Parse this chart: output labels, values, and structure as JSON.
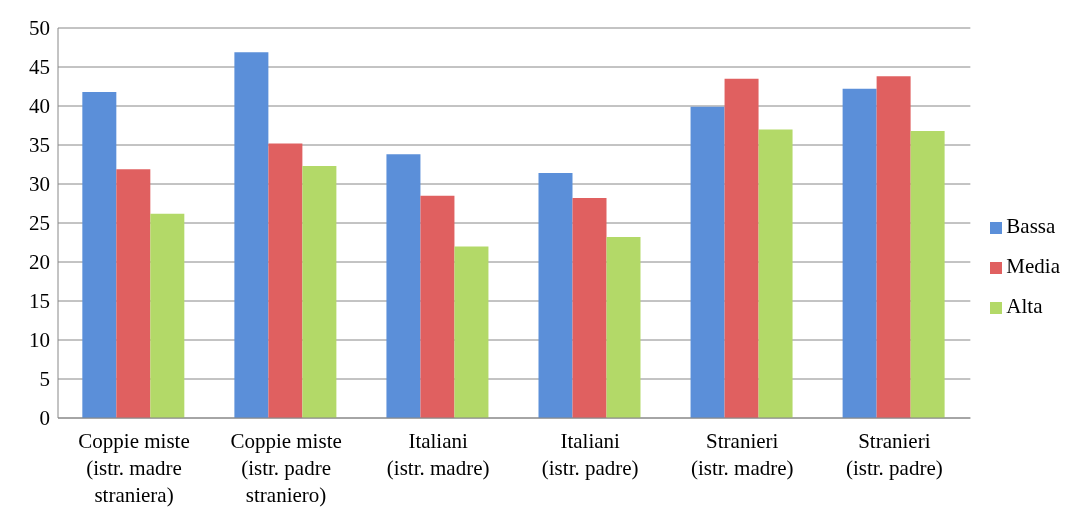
{
  "chart_data": {
    "type": "bar",
    "categories": [
      "Coppie miste (istr. madre straniera)",
      "Coppie miste (istr. padre straniero)",
      "Italiani (istr. madre)",
      "Italiani (istr. padre)",
      "Stranieri (istr. madre)",
      "Stranieri (istr. padre)"
    ],
    "series": [
      {
        "name": "Bassa",
        "color": "#5b8fd9",
        "values": [
          41.8,
          46.9,
          33.8,
          31.4,
          39.9,
          42.2
        ]
      },
      {
        "name": "Media",
        "color": "#e06060",
        "values": [
          31.9,
          35.2,
          28.5,
          28.2,
          43.5,
          43.8
        ]
      },
      {
        "name": "Alta",
        "color": "#b3d968",
        "values": [
          26.2,
          32.3,
          22.0,
          23.2,
          37.0,
          36.8
        ]
      }
    ],
    "ylim": [
      0,
      50
    ],
    "yticks": [
      0,
      5,
      10,
      15,
      20,
      25,
      30,
      35,
      40,
      45,
      50
    ],
    "grid": "y",
    "legend": "right"
  }
}
